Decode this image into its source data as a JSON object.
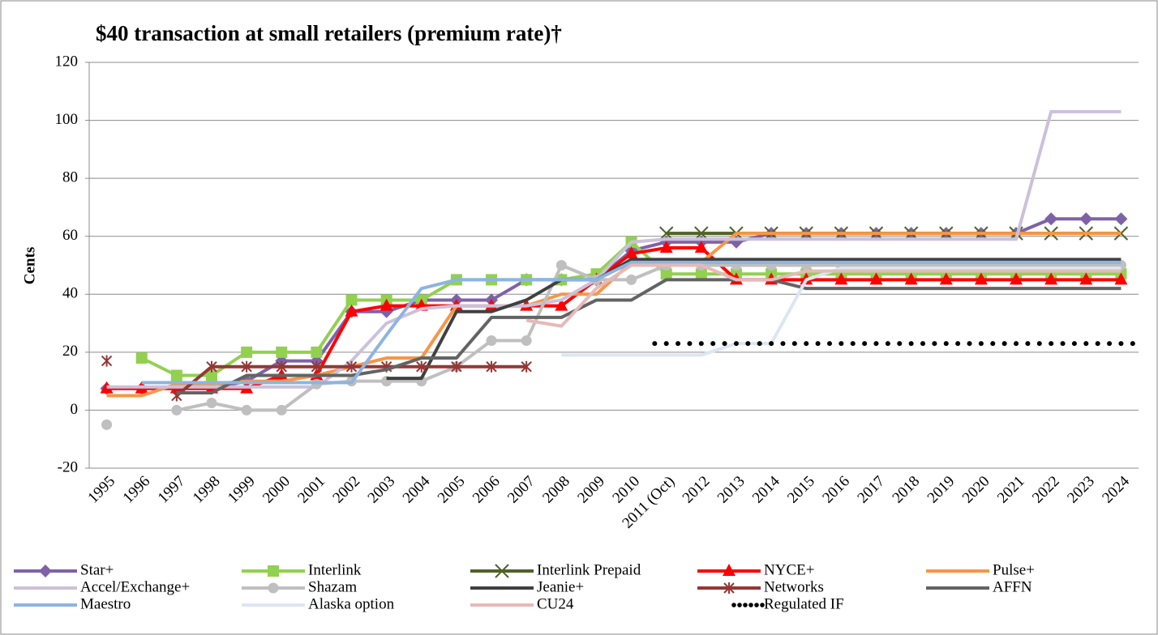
{
  "chart_data": {
    "type": "line",
    "title": "$40 transaction at small retailers (premium rate)†",
    "y_label": "Cents",
    "categories": [
      "1995",
      "1996",
      "1997",
      "1998",
      "1999",
      "2000",
      "2001",
      "2002",
      "2003",
      "2004",
      "2005",
      "2006",
      "2007",
      "2008",
      "2009",
      "2010",
      "2011 (Oct)",
      "2012",
      "2013",
      "2014",
      "2015",
      "2016",
      "2017",
      "2018",
      "2019",
      "2020",
      "2021",
      "2022",
      "2023",
      "2024"
    ],
    "ylim": [
      -20,
      120
    ],
    "yticks": [
      -20,
      0,
      20,
      40,
      60,
      80,
      100,
      120
    ],
    "grid": true,
    "series": [
      {
        "name": "Star+",
        "color": "#7e62a8",
        "marker": "diamond",
        "values": [
          7.5,
          7.5,
          7.5,
          7.5,
          10,
          17,
          17,
          34,
          34,
          38,
          38,
          38,
          45,
          45,
          45,
          55,
          58,
          58,
          58,
          61,
          61,
          61,
          61,
          61,
          61,
          61,
          61,
          66,
          66,
          66
        ]
      },
      {
        "name": "Interlink",
        "color": "#92d050",
        "marker": "square",
        "values": [
          null,
          18,
          12,
          12,
          20,
          20,
          20,
          38,
          38,
          38,
          45,
          45,
          45,
          45,
          47,
          58,
          47,
          47,
          47,
          47,
          47,
          47,
          47,
          47,
          47,
          47,
          47,
          47,
          47,
          47
        ]
      },
      {
        "name": "Interlink Prepaid",
        "color": "#4f6228",
        "marker": "x",
        "values": [
          null,
          null,
          null,
          null,
          null,
          null,
          null,
          null,
          null,
          null,
          null,
          null,
          null,
          null,
          null,
          null,
          61,
          61,
          61,
          61,
          61,
          61,
          61,
          61,
          61,
          61,
          61,
          61,
          61,
          61
        ]
      },
      {
        "name": "NYCE+",
        "color": "#ff0000",
        "marker": "triangle",
        "values": [
          7.5,
          7.5,
          7.5,
          7.5,
          7.5,
          12,
          12,
          34,
          36,
          36,
          36,
          36,
          36,
          36,
          45,
          54,
          56,
          56,
          45,
          45,
          45,
          45,
          45,
          45,
          45,
          45,
          45,
          45,
          45,
          45
        ]
      },
      {
        "name": "Pulse+",
        "color": "#f79646",
        "marker": "none",
        "values": [
          5,
          5,
          9,
          9,
          10,
          10,
          12,
          15,
          18,
          18,
          36,
          36,
          36,
          40,
          40,
          51,
          51,
          51,
          61,
          61,
          61,
          61,
          61,
          61,
          61,
          61,
          61,
          61,
          61,
          61
        ]
      },
      {
        "name": "Accel/Exchange+",
        "color": "#ccc0da",
        "marker": "none",
        "values": [
          8,
          8,
          8,
          8,
          8,
          8,
          8,
          17,
          30,
          35,
          36,
          36,
          36,
          38,
          45,
          58,
          59,
          59,
          59,
          59,
          59,
          59,
          59,
          59,
          59,
          59,
          59,
          103,
          103,
          103
        ]
      },
      {
        "name": "Shazam",
        "color": "#bfbfbf",
        "marker": "circle",
        "values": [
          -5,
          null,
          0,
          2.5,
          0,
          0,
          9,
          10,
          10,
          10,
          15,
          24,
          24,
          50,
          45,
          45,
          50,
          50,
          50,
          50,
          50,
          50,
          50,
          50,
          50,
          50,
          50,
          50,
          50,
          50
        ]
      },
      {
        "name": "Jeanie+",
        "color": "#404040",
        "marker": "none",
        "values": [
          null,
          null,
          null,
          null,
          null,
          null,
          null,
          null,
          11,
          11,
          34,
          34,
          38,
          45,
          45,
          52,
          52,
          52,
          52,
          52,
          52,
          52,
          52,
          52,
          52,
          52,
          52,
          52,
          52,
          52
        ]
      },
      {
        "name": "Networks",
        "color": "#953735",
        "marker": "asterisk",
        "values": [
          17,
          null,
          5,
          15,
          15,
          15,
          15,
          15,
          15,
          15,
          15,
          15,
          15,
          null,
          null,
          null,
          null,
          null,
          null,
          null,
          null,
          null,
          null,
          null,
          null,
          null,
          null,
          null,
          null,
          null
        ]
      },
      {
        "name": "AFFN",
        "color": "#636363",
        "marker": "none",
        "values": [
          null,
          null,
          6,
          6,
          12,
          12,
          12,
          12,
          14,
          18,
          18,
          32,
          32,
          32,
          38,
          38,
          45,
          45,
          45,
          45,
          42,
          42,
          42,
          42,
          42,
          42,
          42,
          42,
          42,
          42
        ]
      },
      {
        "name": "Maestro",
        "color": "#8db4e2",
        "marker": "none",
        "values": [
          null,
          9.5,
          9.5,
          9.5,
          9.5,
          9.5,
          9.5,
          9.5,
          26,
          42,
          45,
          45,
          45,
          45,
          45,
          51,
          51,
          51,
          51,
          51,
          51,
          51,
          51,
          51,
          51,
          51,
          51,
          51,
          51,
          51
        ]
      },
      {
        "name": "Alaska option",
        "color": "#dce6f2",
        "marker": "none",
        "values": [
          null,
          null,
          null,
          null,
          null,
          null,
          null,
          null,
          null,
          null,
          null,
          null,
          null,
          19,
          19,
          19,
          19,
          19,
          23,
          23,
          45,
          49,
          49,
          49,
          49,
          49,
          49,
          49,
          49,
          49
        ]
      },
      {
        "name": "CU24",
        "color": "#e6b9b8",
        "marker": "none",
        "values": [
          null,
          null,
          null,
          null,
          null,
          null,
          null,
          null,
          null,
          null,
          null,
          null,
          31,
          29,
          42,
          50,
          50,
          50,
          45,
          45,
          48,
          48,
          48,
          48,
          48,
          48,
          48,
          48,
          48,
          48
        ]
      },
      {
        "name": "Regulated IF",
        "color": "#000000",
        "marker": "dot",
        "values": [
          null,
          null,
          null,
          null,
          null,
          null,
          null,
          null,
          null,
          null,
          null,
          null,
          null,
          null,
          null,
          null,
          23,
          23,
          23,
          23,
          23,
          23,
          23,
          23,
          23,
          23,
          23,
          23,
          23,
          23
        ]
      }
    ]
  }
}
